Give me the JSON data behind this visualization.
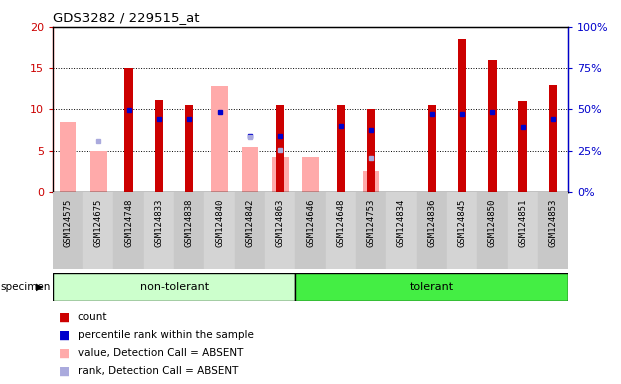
{
  "title": "GDS3282 / 229515_at",
  "samples": [
    "GSM124575",
    "GSM124675",
    "GSM124748",
    "GSM124833",
    "GSM124838",
    "GSM124840",
    "GSM124842",
    "GSM124863",
    "GSM124646",
    "GSM124648",
    "GSM124753",
    "GSM124834",
    "GSM124836",
    "GSM124845",
    "GSM124850",
    "GSM124851",
    "GSM124853"
  ],
  "group_labels": [
    "non-tolerant",
    "tolerant"
  ],
  "non_tolerant_count": 8,
  "tolerant_count": 9,
  "count_values": [
    null,
    null,
    15.0,
    11.2,
    10.5,
    null,
    null,
    10.5,
    null,
    10.5,
    10.0,
    null,
    10.5,
    18.5,
    16.0,
    11.0,
    13.0
  ],
  "rank_values": [
    null,
    null,
    9.9,
    8.8,
    8.8,
    9.7,
    6.8,
    6.8,
    null,
    8.0,
    7.5,
    null,
    9.5,
    9.5,
    9.7,
    7.9,
    8.8
  ],
  "absent_value": [
    8.5,
    5.0,
    null,
    null,
    null,
    12.8,
    5.4,
    4.2,
    4.2,
    null,
    2.5,
    null,
    null,
    null,
    null,
    null,
    null
  ],
  "absent_rank": [
    null,
    6.2,
    null,
    null,
    null,
    null,
    6.7,
    5.1,
    null,
    null,
    4.1,
    null,
    null,
    null,
    null,
    null,
    null
  ],
  "red_color": "#cc0000",
  "blue_color": "#0000cc",
  "pink_color": "#ffaaaa",
  "lightblue_color": "#aaaadd",
  "non_tolerant_bg": "#ccffcc",
  "tolerant_bg": "#44ee44",
  "sample_bg": "#cccccc",
  "ylim_left": [
    0,
    20
  ],
  "ylim_right": [
    0,
    100
  ],
  "yticks_left": [
    0,
    5,
    10,
    15,
    20
  ],
  "yticks_right": [
    0,
    25,
    50,
    75,
    100
  ],
  "ytick_labels_left": [
    "0",
    "5",
    "10",
    "15",
    "20"
  ],
  "ytick_labels_right": [
    "0%",
    "25%",
    "50%",
    "75%",
    "100%"
  ],
  "legend_items": [
    "count",
    "percentile rank within the sample",
    "value, Detection Call = ABSENT",
    "rank, Detection Call = ABSENT"
  ],
  "legend_colors": [
    "#cc0000",
    "#0000cc",
    "#ffaaaa",
    "#aaaadd"
  ]
}
